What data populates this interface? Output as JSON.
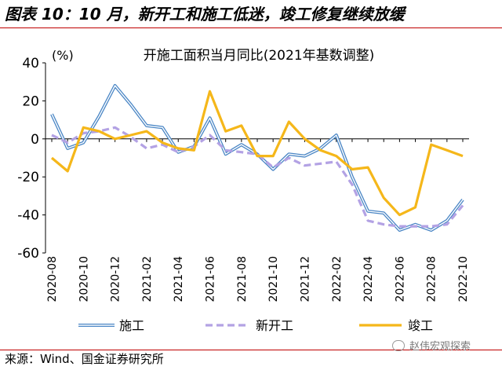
{
  "figure": {
    "title": "图表 10：10 月，新开工和施工低迷，竣工修复继续放缓",
    "source": "来源：Wind、国金证券研究所",
    "watermark": "赵伟宏观探索"
  },
  "chart_data": {
    "type": "line",
    "title": "开施工面积当月同比(2021年基数调整)",
    "unit": "(%)",
    "xlabel": "",
    "ylabel": "",
    "ylim": [
      -60,
      40
    ],
    "yticks": [
      -60,
      -40,
      -20,
      0,
      20,
      40
    ],
    "grid": false,
    "legend": "bottom",
    "x": [
      "2020-08",
      "2020-09",
      "2020-10",
      "2020-11",
      "2020-12",
      "2021-01",
      "2021-02",
      "2021-03",
      "2021-04",
      "2021-05",
      "2021-06",
      "2021-07",
      "2021-08",
      "2021-09",
      "2021-10",
      "2021-11",
      "2021-12",
      "2022-01",
      "2022-02",
      "2022-03",
      "2022-04",
      "2022-05",
      "2022-06",
      "2022-07",
      "2022-08",
      "2022-09",
      "2022-10"
    ],
    "xticklabels": [
      "2020-08",
      "2020-10",
      "2020-12",
      "2021-02",
      "2021-04",
      "2021-06",
      "2021-08",
      "2021-10",
      "2021-12",
      "2022-02",
      "2022-04",
      "2022-06",
      "2022-08",
      "2022-10"
    ],
    "series": [
      {
        "name": "施工",
        "color": "#4a86c5",
        "style": "double",
        "values": [
          13,
          -5,
          -2,
          12,
          28,
          18,
          7,
          6,
          -7,
          -4,
          11,
          -8,
          -3,
          -8,
          -16,
          -8,
          -9,
          -5,
          2,
          -20,
          -38,
          -39,
          -48,
          -45,
          -48,
          -43,
          -32
        ]
      },
      {
        "name": "新开工",
        "color": "#b3a2e4",
        "style": "dashed",
        "values": [
          2,
          -2,
          3,
          4,
          6,
          1,
          -5,
          -3,
          -7,
          -4,
          2,
          -6,
          -7,
          -8,
          -15,
          -10,
          -14,
          -13,
          -12,
          -24,
          -43,
          -45,
          -46,
          -46,
          -46,
          -45,
          -35
        ]
      },
      {
        "name": "竣工",
        "color": "#f5b71a",
        "style": "solid",
        "values": [
          -10,
          -17,
          6,
          4,
          0,
          2,
          4,
          -2,
          -5,
          -6,
          25,
          4,
          7,
          -9,
          -9,
          9,
          0,
          -6,
          -9,
          -16,
          -15,
          -31,
          -40,
          -36,
          -3,
          -6,
          -9
        ]
      }
    ]
  }
}
